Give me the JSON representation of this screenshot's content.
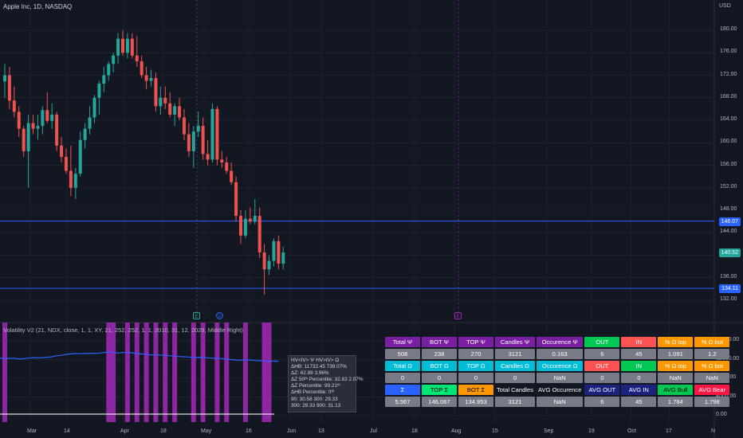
{
  "symbol_title": "Apple Inc, 1D, NASDAQ",
  "currency": "USD",
  "price_axis_labels": [
    "180.00",
    "176.00",
    "172.00",
    "168.00",
    "164.00",
    "160.00",
    "156.00",
    "152.00",
    "148.00",
    "144.00",
    "140.00",
    "136.00",
    "132.00"
  ],
  "price_lines": [
    {
      "label": "146.07",
      "color": "#2962ff"
    },
    {
      "label": "140.52",
      "color": "#26a69a"
    },
    {
      "label": "134.11",
      "color": "#2962ff"
    }
  ],
  "time_axis_labels": [
    "Mar",
    "14",
    "Apr",
    "18",
    "May",
    "16",
    "Jun",
    "13",
    "Jul",
    "18",
    "Aug",
    "15",
    "Sep",
    "19",
    "Oct",
    "17",
    "N"
  ],
  "events": [
    {
      "label": "E",
      "kind": "earnings"
    },
    {
      "label": "D",
      "kind": "dividend"
    },
    {
      "label": "E",
      "kind": "earnings-upcoming"
    }
  ],
  "indicator": {
    "title": "Volatility V2 (21, NDX, close, 1, 1, XY, 21, 252, 252, 1, 1, 2010, 31, 12, 2029, Middle Right)",
    "axis_labels": [
      "16000.00",
      "12000.00",
      "8000.00",
      "4000.00",
      "0.00"
    ]
  },
  "tooltip_lines": [
    "HV<IV> Ψ  HV>IV> Ω",
    "ΔHB: 11732.45  739.07%",
    "ΔZ: 62.89  3.96%",
    "ΔZ 50ᵗʰ Percentile: 32.83  2.07%",
    "ΔZ Percentile: 99.21ᵗʰ",
    "ΔHB Percentile: 0ᵗʰ",
    "90: 30.58  300: 29.33",
    "300: 29.33  900: 31.13"
  ],
  "stats_table": [
    [
      {
        "t": "Total Ψ",
        "bg": "#7b1fa2",
        "fg": "#ffffff"
      },
      {
        "t": "BOT Ψ",
        "bg": "#7b1fa2",
        "fg": "#ffffff"
      },
      {
        "t": "TOP Ψ",
        "bg": "#7b1fa2",
        "fg": "#ffffff"
      },
      {
        "t": "Candles Ψ",
        "bg": "#7b1fa2",
        "fg": "#ffffff"
      },
      {
        "t": "Occurence Ψ",
        "bg": "#7b1fa2",
        "fg": "#ffffff"
      },
      {
        "t": "OUT",
        "bg": "#00c853",
        "fg": "#ffffff"
      },
      {
        "t": "IN",
        "bg": "#ff5252",
        "fg": "#ffffff"
      },
      {
        "t": "% Ω top",
        "bg": "#ff9800",
        "fg": "#ffffff"
      },
      {
        "t": "% Ω bot",
        "bg": "#ff9800",
        "fg": "#ffffff"
      }
    ],
    [
      {
        "t": "508"
      },
      {
        "t": "238"
      },
      {
        "t": "270"
      },
      {
        "t": "3121"
      },
      {
        "t": "0.163"
      },
      {
        "t": "6"
      },
      {
        "t": "45"
      },
      {
        "t": "1.091"
      },
      {
        "t": "1.2"
      }
    ],
    [
      {
        "t": "Total Ω",
        "bg": "#00bcd4",
        "fg": "#ffffff"
      },
      {
        "t": "BOT Ω",
        "bg": "#00bcd4",
        "fg": "#ffffff"
      },
      {
        "t": "TOP Ω",
        "bg": "#00bcd4",
        "fg": "#ffffff"
      },
      {
        "t": "Candles Ω",
        "bg": "#00bcd4",
        "fg": "#ffffff"
      },
      {
        "t": "Occurence Ω",
        "bg": "#00bcd4",
        "fg": "#ffffff"
      },
      {
        "t": "OUT",
        "bg": "#ff5252",
        "fg": "#ffffff"
      },
      {
        "t": "IN",
        "bg": "#00c853",
        "fg": "#ffffff"
      },
      {
        "t": "% Ω top",
        "bg": "#ff9800",
        "fg": "#ffffff"
      },
      {
        "t": "% Ω bot",
        "bg": "#ff9800",
        "fg": "#ffffff"
      }
    ],
    [
      {
        "t": "0"
      },
      {
        "t": "0"
      },
      {
        "t": "0"
      },
      {
        "t": "0"
      },
      {
        "t": "NaN"
      },
      {
        "t": "0"
      },
      {
        "t": "0"
      },
      {
        "t": "NaN"
      },
      {
        "t": "NaN"
      }
    ],
    [
      {
        "t": "Σ",
        "bg": "#2962ff",
        "fg": "#ffffff"
      },
      {
        "t": "TOP Σ",
        "bg": "#00e676",
        "fg": "#000000"
      },
      {
        "t": "BOT Σ",
        "bg": "#ff9800",
        "fg": "#000000"
      },
      {
        "t": "Total Candles",
        "bg": "#131722",
        "fg": "#ffffff"
      },
      {
        "t": "AVG Occurence",
        "bg": "#131722",
        "fg": "#ffffff"
      },
      {
        "t": "AVG OUT",
        "bg": "#1a237e",
        "fg": "#ffffff"
      },
      {
        "t": "AVG IN",
        "bg": "#1a237e",
        "fg": "#ffffff"
      },
      {
        "t": "AVG Bull",
        "bg": "#00c853",
        "fg": "#000000"
      },
      {
        "t": "AVG Bear",
        "bg": "#ff1744",
        "fg": "#ffffff"
      }
    ],
    [
      {
        "t": "5.567"
      },
      {
        "t": "146.087"
      },
      {
        "t": "134.953"
      },
      {
        "t": "3121"
      },
      {
        "t": "NaN"
      },
      {
        "t": "6"
      },
      {
        "t": "45"
      },
      {
        "t": "1.784"
      },
      {
        "t": "1.798"
      }
    ]
  ],
  "colors": {
    "bull": "#26a69a",
    "bear": "#ef5350",
    "bg": "#131722",
    "grid": "#1e222d",
    "hv_line": "#2962ff",
    "band": "#9c27b0"
  },
  "candles": [
    {
      "o": 170.9,
      "h": 174.0,
      "l": 168.0,
      "c": 172.0
    },
    {
      "o": 172.0,
      "h": 173.5,
      "l": 166.0,
      "c": 167.5
    },
    {
      "o": 167.5,
      "h": 170.0,
      "l": 164.5,
      "c": 165.5
    },
    {
      "o": 165.5,
      "h": 166.5,
      "l": 161.0,
      "c": 162.5
    },
    {
      "o": 162.5,
      "h": 163.0,
      "l": 157.5,
      "c": 158.5
    },
    {
      "o": 158.5,
      "h": 165.0,
      "l": 152.0,
      "c": 163.5
    },
    {
      "o": 163.5,
      "h": 165.0,
      "l": 161.5,
      "c": 162.5
    },
    {
      "o": 162.5,
      "h": 165.0,
      "l": 160.5,
      "c": 163.0
    },
    {
      "o": 163.0,
      "h": 166.5,
      "l": 161.5,
      "c": 165.8
    },
    {
      "o": 165.8,
      "h": 169.0,
      "l": 163.5,
      "c": 163.9
    },
    {
      "o": 163.9,
      "h": 167.0,
      "l": 162.5,
      "c": 165.0
    },
    {
      "o": 165.0,
      "h": 165.5,
      "l": 158.5,
      "c": 159.5
    },
    {
      "o": 159.5,
      "h": 161.0,
      "l": 156.5,
      "c": 157.5
    },
    {
      "o": 157.5,
      "h": 159.0,
      "l": 154.5,
      "c": 155.0
    },
    {
      "o": 155.0,
      "h": 159.5,
      "l": 150.5,
      "c": 152.0
    },
    {
      "o": 152.0,
      "h": 155.5,
      "l": 150.0,
      "c": 154.5
    },
    {
      "o": 154.5,
      "h": 162.0,
      "l": 154.0,
      "c": 160.5
    },
    {
      "o": 160.5,
      "h": 163.5,
      "l": 159.0,
      "c": 162.5
    },
    {
      "o": 162.5,
      "h": 166.5,
      "l": 161.5,
      "c": 164.5
    },
    {
      "o": 164.5,
      "h": 168.5,
      "l": 163.5,
      "c": 168.0
    },
    {
      "o": 168.0,
      "h": 171.0,
      "l": 165.0,
      "c": 170.5
    },
    {
      "o": 170.5,
      "h": 173.5,
      "l": 169.0,
      "c": 172.0
    },
    {
      "o": 172.0,
      "h": 174.5,
      "l": 171.0,
      "c": 174.0
    },
    {
      "o": 174.0,
      "h": 176.0,
      "l": 172.5,
      "c": 175.5
    },
    {
      "o": 175.5,
      "h": 179.5,
      "l": 174.0,
      "c": 178.5
    },
    {
      "o": 178.5,
      "h": 180.0,
      "l": 175.5,
      "c": 176.0
    },
    {
      "o": 176.0,
      "h": 179.5,
      "l": 175.0,
      "c": 178.5
    },
    {
      "o": 178.5,
      "h": 179.5,
      "l": 175.0,
      "c": 175.5
    },
    {
      "o": 175.5,
      "h": 179.0,
      "l": 173.5,
      "c": 174.5
    },
    {
      "o": 174.5,
      "h": 175.5,
      "l": 171.5,
      "c": 172.0
    },
    {
      "o": 172.0,
      "h": 173.5,
      "l": 169.5,
      "c": 171.0
    },
    {
      "o": 171.0,
      "h": 173.0,
      "l": 170.0,
      "c": 171.5
    },
    {
      "o": 171.5,
      "h": 172.5,
      "l": 165.5,
      "c": 166.5
    },
    {
      "o": 166.5,
      "h": 170.0,
      "l": 165.0,
      "c": 168.0
    },
    {
      "o": 168.0,
      "h": 170.0,
      "l": 166.0,
      "c": 167.0
    },
    {
      "o": 167.0,
      "h": 169.0,
      "l": 164.5,
      "c": 165.0
    },
    {
      "o": 165.0,
      "h": 167.0,
      "l": 163.0,
      "c": 166.5
    },
    {
      "o": 166.5,
      "h": 168.0,
      "l": 164.0,
      "c": 164.5
    },
    {
      "o": 164.5,
      "h": 166.0,
      "l": 160.5,
      "c": 161.5
    },
    {
      "o": 161.5,
      "h": 163.5,
      "l": 157.5,
      "c": 158.5
    },
    {
      "o": 158.5,
      "h": 163.0,
      "l": 155.5,
      "c": 162.0
    },
    {
      "o": 162.0,
      "h": 165.5,
      "l": 161.0,
      "c": 163.0
    },
    {
      "o": 163.0,
      "h": 164.5,
      "l": 157.0,
      "c": 158.0
    },
    {
      "o": 158.0,
      "h": 160.5,
      "l": 156.0,
      "c": 157.0
    },
    {
      "o": 157.0,
      "h": 167.0,
      "l": 156.5,
      "c": 166.0
    },
    {
      "o": 166.0,
      "h": 166.5,
      "l": 156.0,
      "c": 157.0
    },
    {
      "o": 157.0,
      "h": 158.5,
      "l": 155.5,
      "c": 156.5
    },
    {
      "o": 156.5,
      "h": 157.5,
      "l": 154.5,
      "c": 155.0
    },
    {
      "o": 155.0,
      "h": 156.5,
      "l": 152.5,
      "c": 153.0
    },
    {
      "o": 153.0,
      "h": 154.0,
      "l": 146.0,
      "c": 147.0
    },
    {
      "o": 147.0,
      "h": 148.0,
      "l": 142.0,
      "c": 143.5
    },
    {
      "o": 143.5,
      "h": 148.0,
      "l": 143.0,
      "c": 146.5
    },
    {
      "o": 146.5,
      "h": 148.5,
      "l": 145.5,
      "c": 146.0
    },
    {
      "o": 146.0,
      "h": 150.0,
      "l": 145.5,
      "c": 147.0
    },
    {
      "o": 147.0,
      "h": 148.5,
      "l": 139.5,
      "c": 140.5
    },
    {
      "o": 140.5,
      "h": 142.0,
      "l": 133.0,
      "c": 137.5
    },
    {
      "o": 137.5,
      "h": 140.0,
      "l": 136.5,
      "c": 139.0
    },
    {
      "o": 139.0,
      "h": 143.0,
      "l": 138.0,
      "c": 142.5
    },
    {
      "o": 142.5,
      "h": 143.5,
      "l": 137.5,
      "c": 138.5
    },
    {
      "o": 138.5,
      "h": 141.5,
      "l": 137.5,
      "c": 140.5
    }
  ],
  "hv_series": [
    12350,
    12200,
    12250,
    12300,
    12100,
    12200,
    12300,
    12400,
    12350,
    12400,
    12500,
    12600,
    12800,
    12900,
    13100,
    13200,
    13300,
    13250,
    13300,
    13350,
    13300,
    13400,
    13500,
    13600,
    13500,
    13400,
    13500,
    13550,
    13450,
    13300,
    13200,
    13100,
    13000,
    13050,
    12900,
    12950,
    12800,
    12700,
    12650,
    12600,
    12550,
    12400,
    12500,
    12450,
    12350,
    12300,
    12250,
    12200,
    12100,
    12000,
    11900,
    11850,
    11950,
    11900,
    11800,
    11750,
    11700,
    11650,
    11700,
    11650
  ],
  "bands": [
    0,
    22,
    23,
    26,
    28,
    30,
    32,
    34,
    36,
    40,
    42,
    45,
    47,
    51,
    55,
    56
  ],
  "band_widths": [
    1,
    1,
    1,
    1,
    1,
    1,
    1,
    1,
    1,
    1,
    1,
    1,
    1,
    1,
    1,
    1
  ]
}
